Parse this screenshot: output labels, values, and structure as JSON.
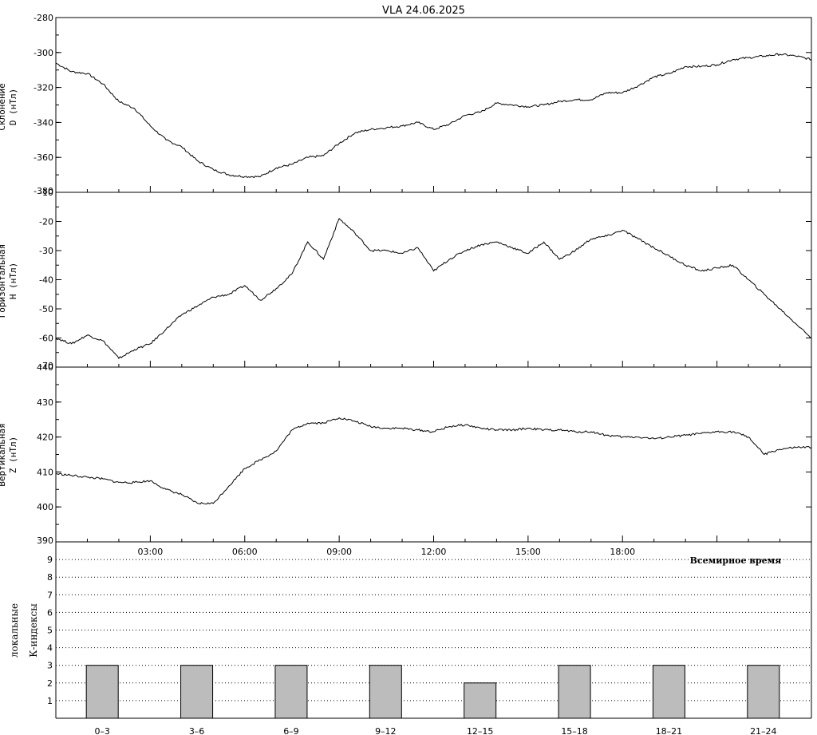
{
  "title": "VLA   24.06.2025",
  "colors": {
    "line": "#000000",
    "bar": "#bcbcbc",
    "background": "#ffffff"
  },
  "chart_data": [
    {
      "type": "line",
      "panel": "D",
      "ylabel": "D (нТл)",
      "ylabel_top": "Склонение",
      "ylim": [
        -380,
        -280
      ],
      "yticks": [
        -280,
        -300,
        -320,
        -340,
        -360,
        -380
      ],
      "x_hours": [
        0,
        0.5,
        1,
        1.5,
        2,
        2.5,
        3,
        3.5,
        4,
        4.5,
        5,
        5.5,
        6,
        6.5,
        7,
        7.5,
        8,
        8.5,
        9,
        9.5,
        10,
        10.5,
        11,
        11.5,
        12,
        12.5,
        13,
        13.5,
        14,
        14.5,
        15,
        15.5,
        16,
        16.5,
        17,
        17.5,
        18,
        18.5,
        19,
        19.5,
        20,
        20.5,
        21,
        21.5,
        22,
        22.5,
        23,
        23.5,
        24
      ],
      "values": [
        -306,
        -311,
        -312,
        -318,
        -328,
        -332,
        -342,
        -350,
        -354,
        -362,
        -367,
        -370,
        -371,
        -371,
        -366,
        -364,
        -360,
        -359,
        -352,
        -346,
        -344,
        -343,
        -342,
        -340,
        -344,
        -341,
        -336,
        -334,
        -329,
        -330,
        -331,
        -330,
        -328,
        -327,
        -327,
        -323,
        -323,
        -319,
        -314,
        -312,
        -308,
        -308,
        -307,
        -304,
        -303,
        -302,
        -301,
        -302,
        -304
      ]
    },
    {
      "type": "line",
      "panel": "H",
      "ylabel": "H (нТл)",
      "ylabel_top": "Горизонтальная",
      "ylim": [
        -70,
        -10
      ],
      "yticks": [
        -10,
        -20,
        -30,
        -40,
        -50,
        -60,
        -70
      ],
      "x_hours": [
        0,
        0.5,
        1,
        1.5,
        2,
        2.5,
        3,
        3.5,
        4,
        4.5,
        5,
        5.5,
        6,
        6.5,
        7,
        7.5,
        8,
        8.5,
        9,
        9.5,
        10,
        10.5,
        11,
        11.5,
        12,
        12.5,
        13,
        13.5,
        14,
        14.5,
        15,
        15.5,
        16,
        16.5,
        17,
        17.5,
        18,
        18.5,
        19,
        19.5,
        20,
        20.5,
        21,
        21.5,
        22,
        22.5,
        23,
        23.5,
        24
      ],
      "values": [
        -60,
        -62,
        -59,
        -61,
        -67,
        -64,
        -62,
        -57,
        -52,
        -49,
        -46,
        -45,
        -42,
        -47,
        -43,
        -38,
        -27,
        -33,
        -19,
        -24,
        -30,
        -30,
        -31,
        -29,
        -37,
        -33,
        -30,
        -28,
        -27,
        -29,
        -31,
        -27,
        -33,
        -30,
        -26,
        -25,
        -23,
        -26,
        -29,
        -32,
        -35,
        -37,
        -36,
        -35,
        -40,
        -45,
        -50,
        -55,
        -60
      ]
    },
    {
      "type": "line",
      "panel": "Z",
      "ylabel": "Z (нТл)",
      "ylabel_top": "Вертикальная",
      "ylim": [
        390,
        440
      ],
      "yticks": [
        440,
        430,
        420,
        410,
        400,
        390
      ],
      "x_hours": [
        0,
        0.5,
        1,
        1.5,
        2,
        2.5,
        3,
        3.5,
        4,
        4.5,
        5,
        5.5,
        6,
        6.5,
        7,
        7.5,
        8,
        8.5,
        9,
        9.5,
        10,
        10.5,
        11,
        11.5,
        12,
        12.5,
        13,
        13.5,
        14,
        14.5,
        15,
        15.5,
        16,
        16.5,
        17,
        17.5,
        18,
        18.5,
        19,
        19.5,
        20,
        20.5,
        21,
        21.5,
        22,
        22.5,
        23,
        23.5,
        24
      ],
      "values": [
        409.5,
        409,
        408.5,
        408,
        407,
        407,
        407.5,
        405,
        403.5,
        401,
        401,
        406,
        411,
        413.5,
        416,
        422,
        424,
        424,
        425.5,
        424.5,
        423,
        422.5,
        422.5,
        422,
        421.5,
        423,
        423.5,
        422.5,
        422,
        422,
        422.5,
        422,
        422,
        421.5,
        421.5,
        420.5,
        420,
        420,
        419.5,
        420,
        420.5,
        421,
        421.5,
        421.5,
        420,
        415,
        416.5,
        417,
        417
      ]
    },
    {
      "type": "bar",
      "panel": "K",
      "ylabel_line1": "локальные",
      "ylabel_line2": "К-индексы",
      "ylim": [
        0,
        10
      ],
      "yticks": [
        1,
        2,
        3,
        4,
        5,
        6,
        7,
        8,
        9
      ],
      "categories": [
        "0–3",
        "3–6",
        "6–9",
        "9–12",
        "12–15",
        "15–18",
        "18–21",
        "21–24"
      ],
      "values": [
        3,
        3,
        3,
        3,
        2,
        3,
        3,
        3
      ]
    }
  ],
  "x_axis": {
    "tick_labels": [
      "03:00",
      "06:00",
      "09:00",
      "12:00",
      "15:00",
      "18:00"
    ],
    "tick_hours": [
      3,
      6,
      9,
      12,
      15,
      18
    ],
    "label": "Всемирное время"
  }
}
